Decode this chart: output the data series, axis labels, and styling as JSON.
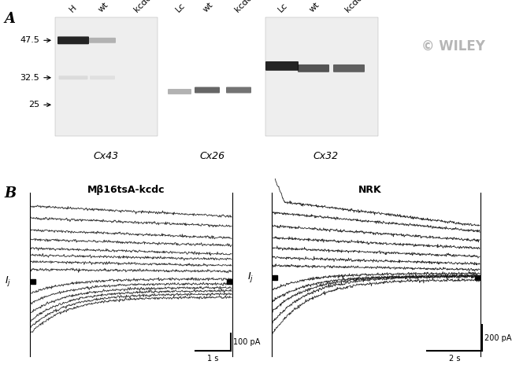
{
  "panel_A_label": "A",
  "panel_B_label": "B",
  "mw_labels": [
    "47.5",
    "32.5",
    "25"
  ],
  "lane_labels_cx43": [
    "H",
    "wt",
    "kcdc"
  ],
  "lane_labels_cx26": [
    "Lc",
    "wt",
    "kcdc"
  ],
  "lane_labels_cx32": [
    "Lc",
    "wt",
    "kcdc"
  ],
  "panel_labels": [
    "Cx43",
    "Cx26",
    "Cx32"
  ],
  "left_panel_title": "Mβ16tsA-kcdc",
  "right_panel_title": "NRK",
  "left_scale_bar_x": "1 s",
  "left_scale_bar_y": "100 pA",
  "right_scale_bar_x": "2 s",
  "right_scale_bar_y": "200 pA",
  "wiley_text": "© WILEY",
  "bg_color": "#ffffff",
  "blot_bg_cx43": "#e8e8e8",
  "blot_bg_cx32": "#e8e8e8",
  "blot_bg_cx26": "#ffffff",
  "label_fontsize": 8,
  "tick_fontsize": 8,
  "title_fontsize": 9,
  "panel_label_fontsize": 13
}
